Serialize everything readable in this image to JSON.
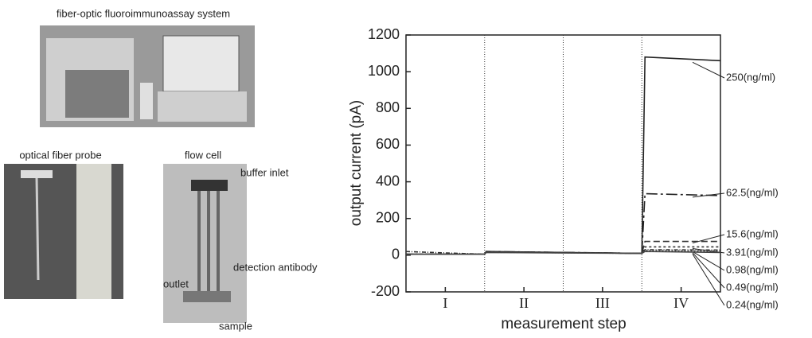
{
  "photos": {
    "system": "fiber-optic fluoroimmunoassay system",
    "probe": "optical fiber probe",
    "cell": "flow cell",
    "buffer": "buffer inlet",
    "antibody": "detection antibody",
    "outlet": "outlet",
    "sample": "sample"
  },
  "chart_data": {
    "type": "line",
    "xlabel": "measurement step",
    "ylabel": "output current (pA)",
    "x": [
      0,
      1,
      1.02,
      2,
      3,
      3.04,
      4
    ],
    "xlim": [
      0,
      4
    ],
    "xticks": [
      {
        "value": 0.5,
        "label": "I"
      },
      {
        "value": 1.5,
        "label": "II"
      },
      {
        "value": 2.5,
        "label": "III"
      },
      {
        "value": 3.5,
        "label": "IV"
      }
    ],
    "dividers": [
      1,
      2,
      3
    ],
    "ylim": [
      -200,
      1200
    ],
    "yticks": [
      -200,
      0,
      200,
      400,
      600,
      800,
      1000,
      1200
    ],
    "series": [
      {
        "name": "250(ng/ml)",
        "color": "#222222",
        "dash": "none",
        "values": [
          5,
          5,
          20,
          15,
          10,
          1080,
          1060
        ]
      },
      {
        "name": "62.5(ng/ml)",
        "color": "#222222",
        "dash": "14,4,3,4",
        "values": [
          5,
          5,
          20,
          15,
          10,
          335,
          325
        ]
      },
      {
        "name": "15.6(ng/ml)",
        "color": "#333333",
        "dash": "8,4",
        "values": [
          5,
          5,
          18,
          14,
          10,
          75,
          75
        ]
      },
      {
        "name": "3.91(ng/ml)",
        "color": "#333333",
        "dash": "3,3",
        "values": [
          5,
          5,
          18,
          14,
          10,
          45,
          45
        ]
      },
      {
        "name": "0.98(ng/ml)",
        "color": "#333333",
        "dash": "5,2,1,2",
        "values": [
          20,
          5,
          16,
          14,
          10,
          30,
          28
        ]
      },
      {
        "name": "0.49(ng/ml)",
        "color": "#444444",
        "dash": "2,2",
        "values": [
          5,
          5,
          16,
          13,
          10,
          25,
          22
        ]
      },
      {
        "name": "0.24(ng/ml)",
        "color": "#444444",
        "dash": "none",
        "values": [
          5,
          5,
          15,
          12,
          10,
          20,
          15
        ]
      }
    ]
  }
}
